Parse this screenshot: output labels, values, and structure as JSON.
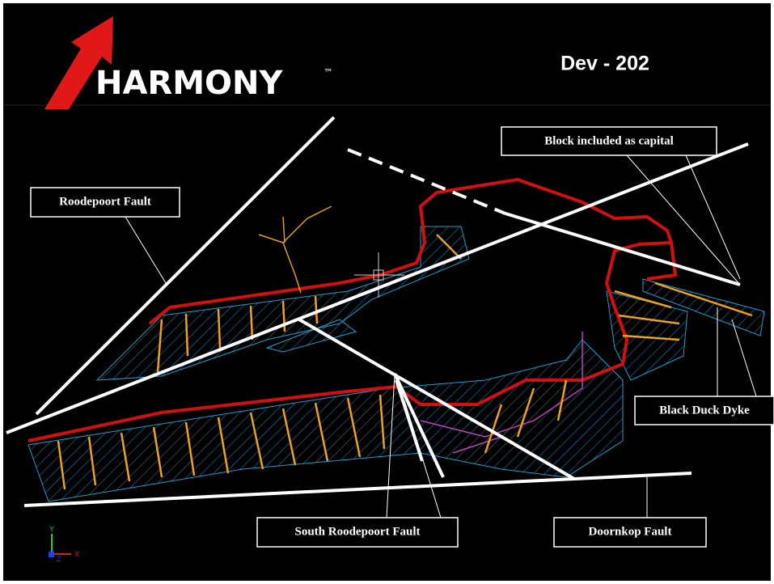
{
  "header": {
    "logo": "HARMONY",
    "trademark": "™",
    "title": "Dev - 202"
  },
  "labels": {
    "roodepoort_fault": "Roodepoort Fault",
    "block_capital": "Block included as capital",
    "black_duck_dyke": "Black Duck Dyke",
    "south_roodepoort_fault": "South Roodepoort Fault",
    "doornkop_fault": "Doornkop Fault"
  },
  "axes_icon": {
    "y": "Y",
    "x": "X",
    "z": "Z"
  }
}
